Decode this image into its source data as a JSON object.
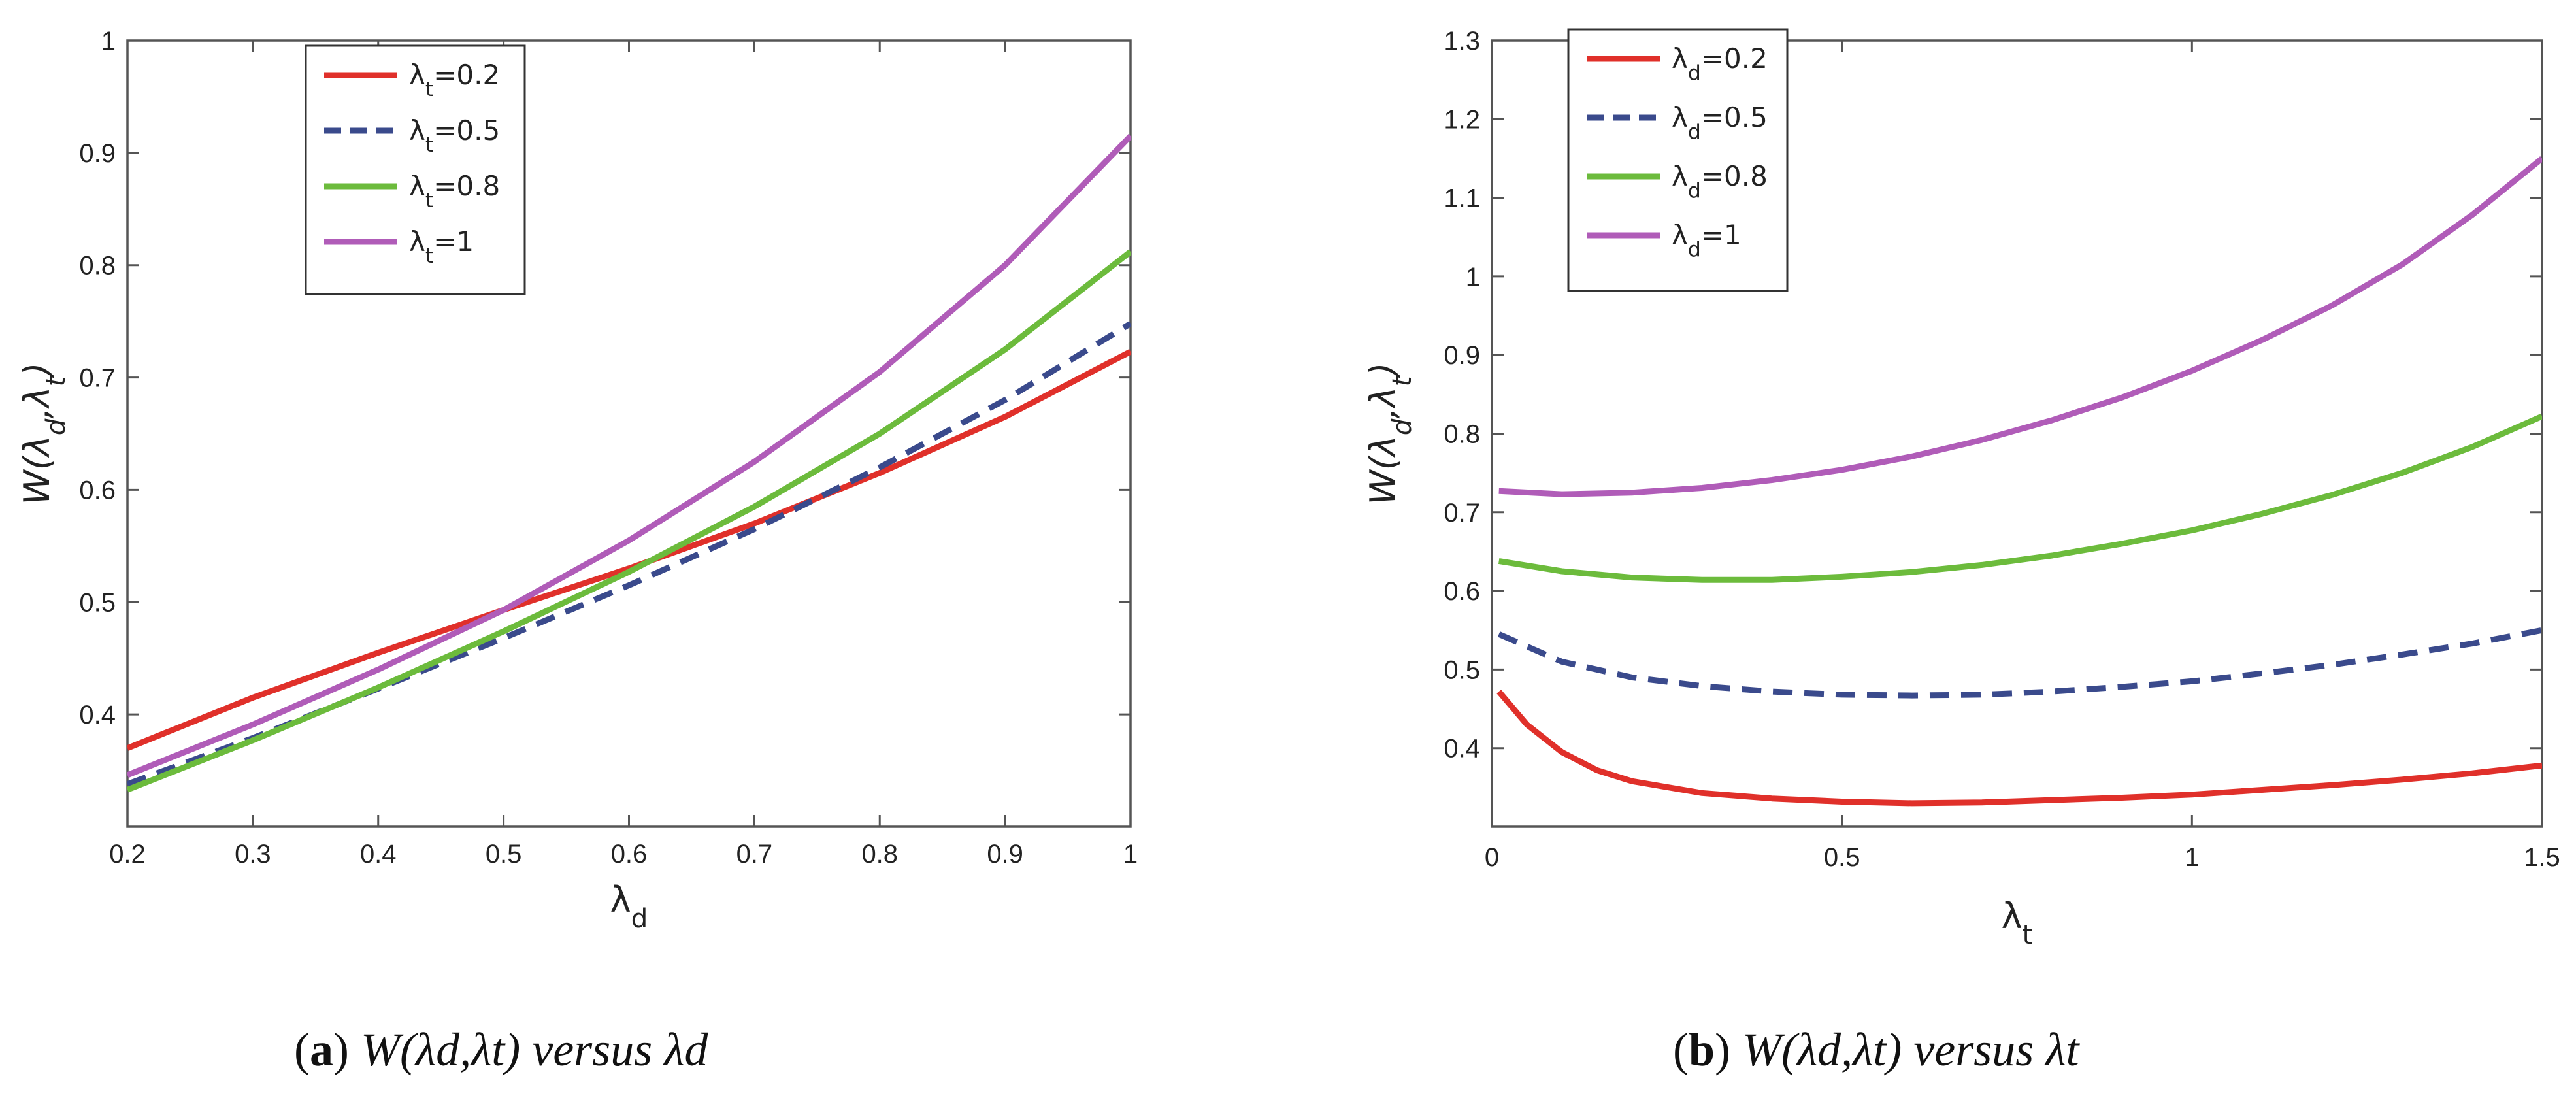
{
  "figure": {
    "caption_a": {
      "label": "a",
      "text": "W(λd,λt) versus λd"
    },
    "caption_b": {
      "label": "b",
      "text": "W(λd,λt) versus λt"
    }
  },
  "colors": {
    "red": "#e0302a",
    "navy": "#3a4a8c",
    "green": "#6cbb3c",
    "purple": "#b05cb8"
  },
  "chart_data": [
    {
      "id": "a",
      "type": "line",
      "title": "",
      "xlabel": "λd",
      "ylabel": "W(λd,λt)",
      "xlim": [
        0.2,
        1.0
      ],
      "ylim": [
        0.3,
        1.0
      ],
      "xticks": [
        "0.2",
        "0.3",
        "0.4",
        "0.5",
        "0.6",
        "0.7",
        "0.8",
        "0.9",
        "1"
      ],
      "yticks": [
        "0.4",
        "0.5",
        "0.6",
        "0.7",
        "0.8",
        "0.9",
        "1"
      ],
      "legend_position": "top-left",
      "series": [
        {
          "name": "λt=0.2",
          "color": "#e0302a",
          "dash": "solid",
          "x": [
            0.2,
            0.3,
            0.4,
            0.5,
            0.6,
            0.7,
            0.8,
            0.9,
            1.0
          ],
          "y": [
            0.37,
            0.415,
            0.455,
            0.493,
            0.53,
            0.57,
            0.615,
            0.665,
            0.723
          ]
        },
        {
          "name": "λt=0.5",
          "color": "#3a4a8c",
          "dash": "dashed",
          "x": [
            0.2,
            0.3,
            0.4,
            0.5,
            0.6,
            0.7,
            0.8,
            0.9,
            1.0
          ],
          "y": [
            0.338,
            0.379,
            0.423,
            0.468,
            0.515,
            0.565,
            0.62,
            0.68,
            0.748
          ]
        },
        {
          "name": "λt=0.8",
          "color": "#6cbb3c",
          "dash": "solid",
          "x": [
            0.2,
            0.3,
            0.4,
            0.5,
            0.6,
            0.7,
            0.8,
            0.9,
            1.0
          ],
          "y": [
            0.333,
            0.377,
            0.424,
            0.474,
            0.527,
            0.585,
            0.65,
            0.725,
            0.812
          ]
        },
        {
          "name": "λt=1",
          "color": "#b05cb8",
          "dash": "solid",
          "x": [
            0.2,
            0.3,
            0.4,
            0.5,
            0.6,
            0.7,
            0.8,
            0.9,
            1.0
          ],
          "y": [
            0.346,
            0.391,
            0.44,
            0.493,
            0.555,
            0.625,
            0.705,
            0.8,
            0.915
          ]
        }
      ]
    },
    {
      "id": "b",
      "type": "line",
      "title": "",
      "xlabel": "λt",
      "ylabel": "W(λd,λt)",
      "xlim": [
        0.0,
        1.5
      ],
      "ylim": [
        0.3,
        1.3
      ],
      "xticks": [
        "0",
        "0.5",
        "1",
        "1.5"
      ],
      "yticks": [
        "0.4",
        "0.5",
        "0.6",
        "0.7",
        "0.8",
        "0.9",
        "1",
        "1.1",
        "1.2",
        "1.3"
      ],
      "legend_position": "top-left",
      "series": [
        {
          "name": "λd=0.2",
          "color": "#e0302a",
          "dash": "solid",
          "x": [
            0.01,
            0.05,
            0.1,
            0.15,
            0.2,
            0.3,
            0.4,
            0.5,
            0.6,
            0.7,
            0.8,
            0.9,
            1.0,
            1.1,
            1.2,
            1.3,
            1.4,
            1.5
          ],
          "y": [
            0.472,
            0.43,
            0.395,
            0.372,
            0.358,
            0.343,
            0.336,
            0.332,
            0.33,
            0.331,
            0.334,
            0.337,
            0.341,
            0.347,
            0.353,
            0.36,
            0.368,
            0.378
          ]
        },
        {
          "name": "λd=0.5",
          "color": "#3a4a8c",
          "dash": "dashed",
          "x": [
            0.01,
            0.1,
            0.2,
            0.3,
            0.4,
            0.5,
            0.6,
            0.7,
            0.8,
            0.9,
            1.0,
            1.1,
            1.2,
            1.3,
            1.4,
            1.5
          ],
          "y": [
            0.545,
            0.51,
            0.49,
            0.479,
            0.472,
            0.468,
            0.467,
            0.468,
            0.472,
            0.478,
            0.485,
            0.495,
            0.506,
            0.519,
            0.533,
            0.55
          ]
        },
        {
          "name": "λd=0.8",
          "color": "#6cbb3c",
          "dash": "solid",
          "x": [
            0.01,
            0.1,
            0.2,
            0.3,
            0.4,
            0.5,
            0.6,
            0.7,
            0.8,
            0.9,
            1.0,
            1.1,
            1.2,
            1.3,
            1.4,
            1.5
          ],
          "y": [
            0.638,
            0.625,
            0.617,
            0.614,
            0.614,
            0.618,
            0.624,
            0.633,
            0.645,
            0.66,
            0.677,
            0.698,
            0.722,
            0.75,
            0.783,
            0.822
          ]
        },
        {
          "name": "λd=1",
          "color": "#b05cb8",
          "dash": "solid",
          "x": [
            0.01,
            0.1,
            0.2,
            0.3,
            0.4,
            0.5,
            0.6,
            0.7,
            0.8,
            0.9,
            1.0,
            1.1,
            1.2,
            1.3,
            1.4,
            1.5
          ],
          "y": [
            0.727,
            0.723,
            0.725,
            0.731,
            0.741,
            0.754,
            0.771,
            0.792,
            0.817,
            0.846,
            0.88,
            0.919,
            0.963,
            1.015,
            1.078,
            1.15
          ]
        }
      ]
    }
  ]
}
